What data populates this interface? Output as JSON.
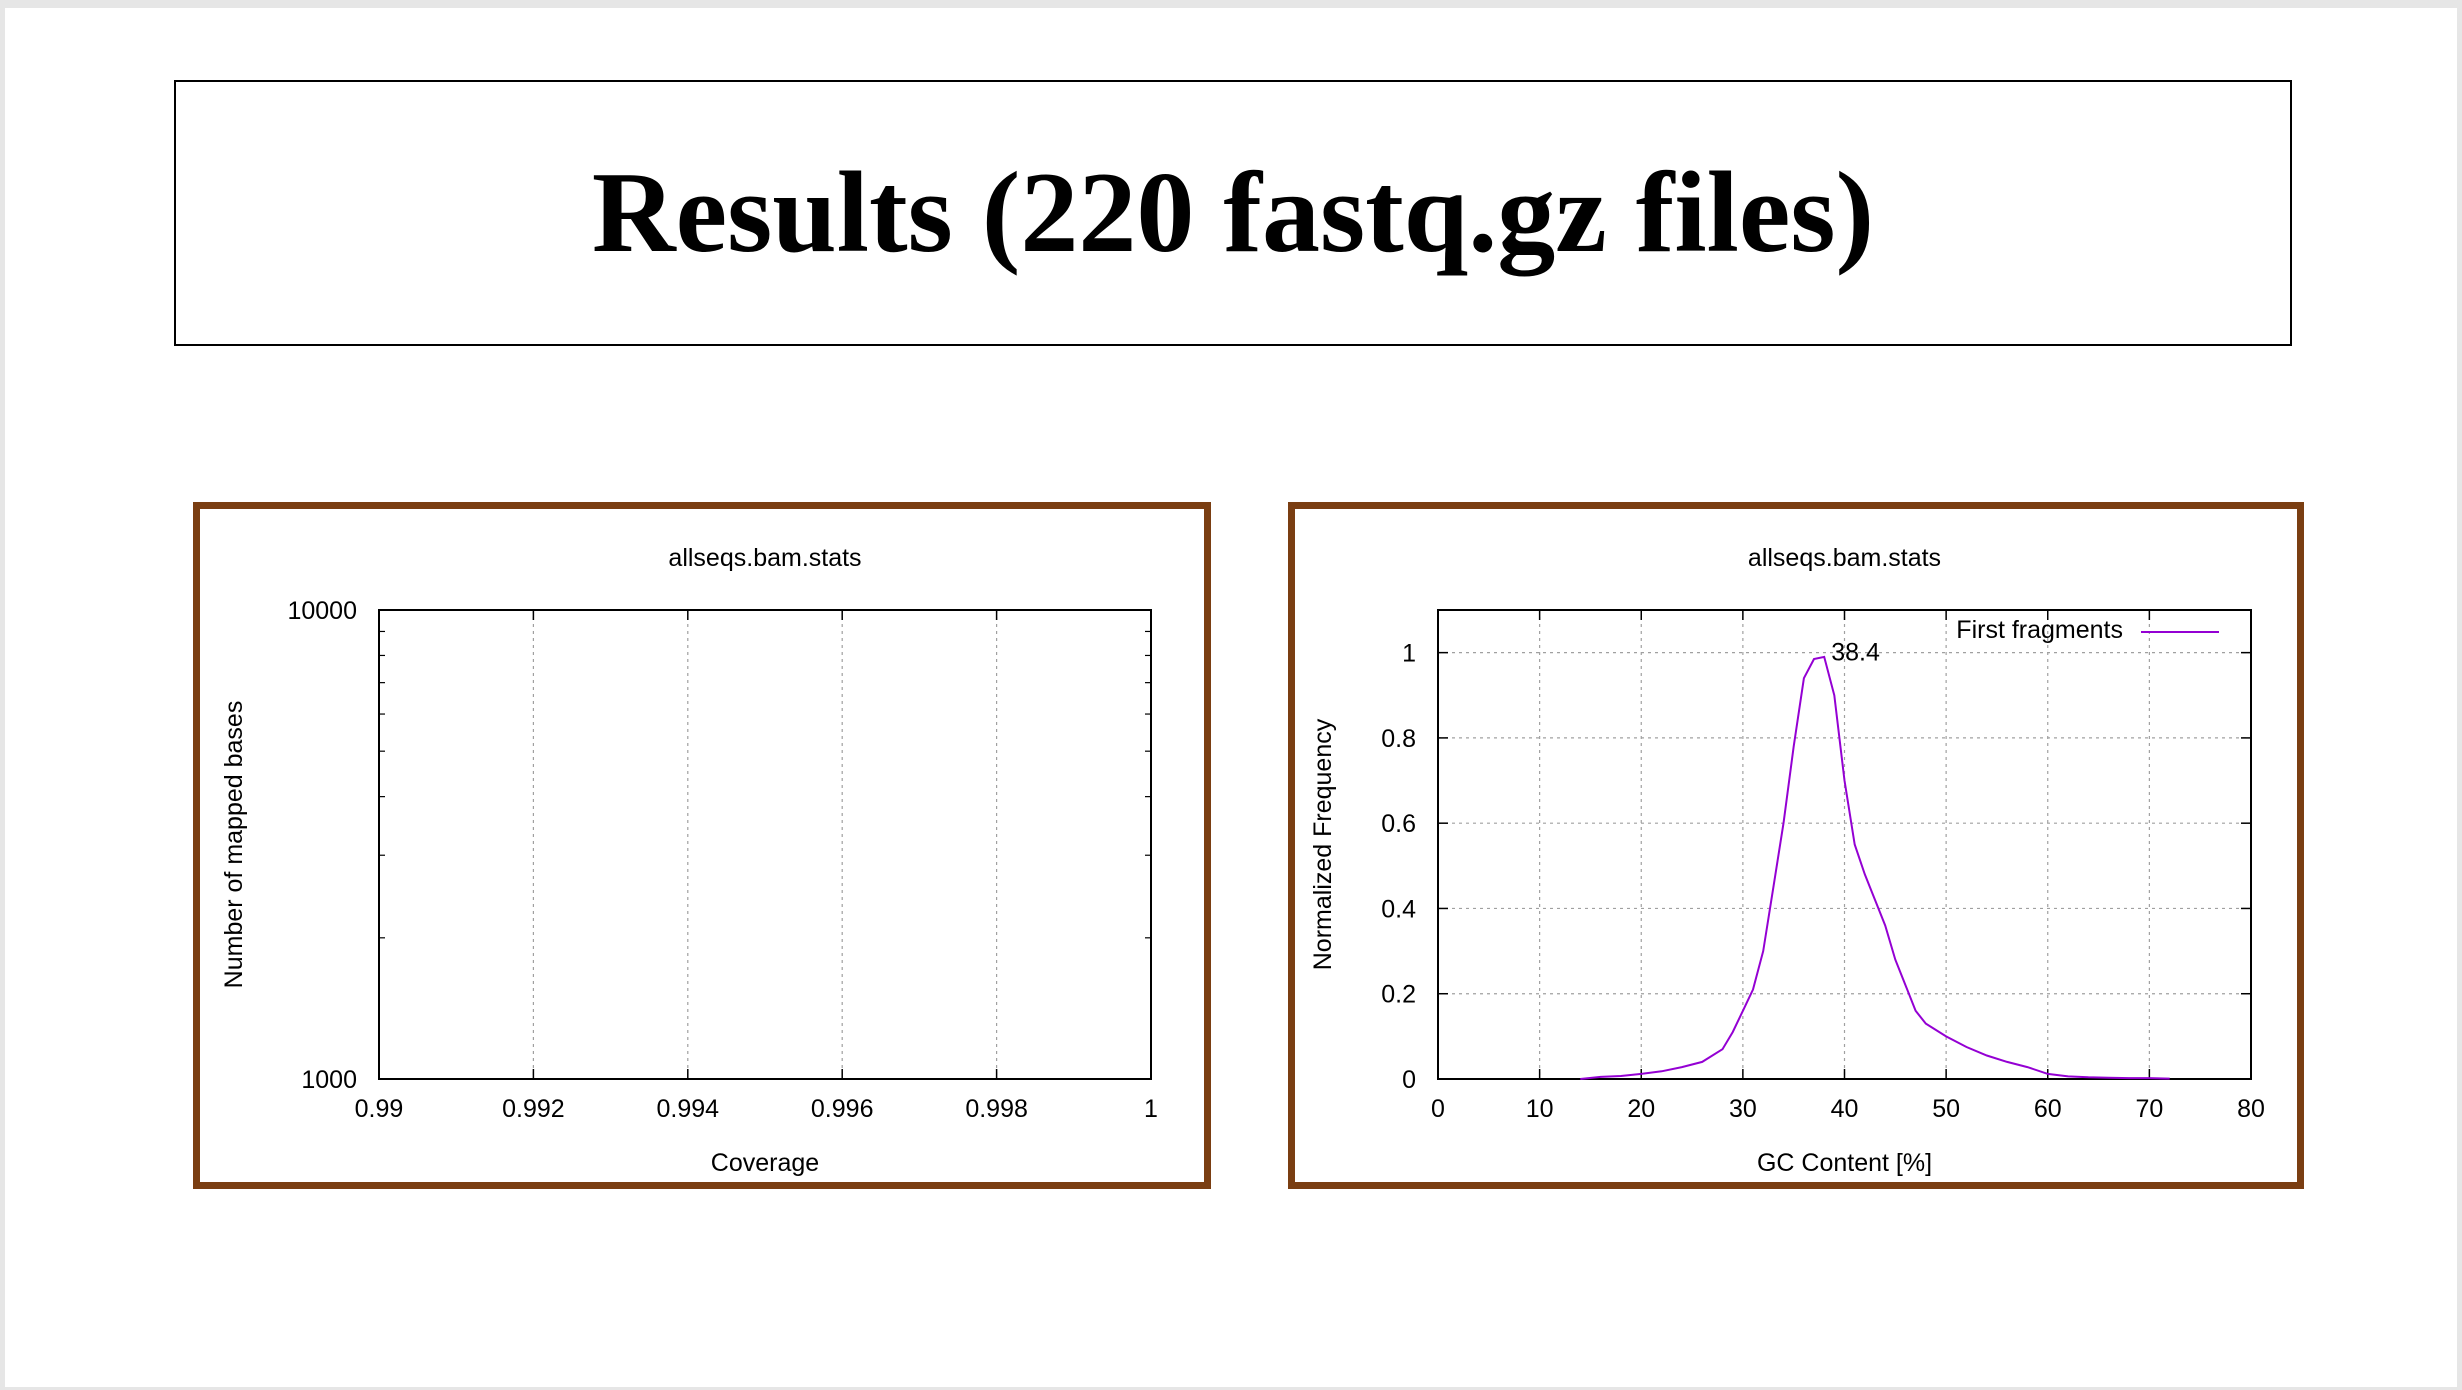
{
  "slide": {
    "title": "Results (220 fastq.gz files)"
  },
  "colors": {
    "frame_border": "#7a3e12",
    "series_line": "#9400d3",
    "grid": "#a0a0a0"
  },
  "chart_data": [
    {
      "type": "line",
      "title": "allseqs.bam.stats",
      "xlabel": "Coverage",
      "ylabel": "Number of mapped bases",
      "xlim": [
        0.99,
        1
      ],
      "ylim": [
        1000,
        10000
      ],
      "yscale": "log",
      "grid": true,
      "x_ticks": [
        0.99,
        0.992,
        0.994,
        0.996,
        0.998,
        1
      ],
      "x_tick_labels": [
        "0.99",
        "0.992",
        "0.994",
        "0.996",
        "0.998",
        "1"
      ],
      "y_ticks": [
        1000,
        10000
      ],
      "y_tick_labels": [
        "1000",
        "10000"
      ],
      "series": []
    },
    {
      "type": "line",
      "title": "allseqs.bam.stats",
      "xlabel": "GC Content [%]",
      "ylabel": "Normalized Frequency",
      "xlim": [
        0,
        80
      ],
      "ylim": [
        0,
        1.1
      ],
      "grid": true,
      "legend_position": "top-right",
      "x_ticks": [
        0,
        10,
        20,
        30,
        40,
        50,
        60,
        70,
        80
      ],
      "x_tick_labels": [
        "0",
        "10",
        "20",
        "30",
        "40",
        "50",
        "60",
        "70",
        "80"
      ],
      "y_ticks": [
        0,
        0.2,
        0.4,
        0.6,
        0.8,
        1
      ],
      "y_tick_labels": [
        "0",
        "0.2",
        "0.4",
        "0.6",
        "0.8",
        "1"
      ],
      "annotation": {
        "text": "38.4",
        "x": 38.4,
        "y": 1
      },
      "series": [
        {
          "name": "First fragments",
          "color": "#9400d3",
          "x": [
            14,
            16,
            18,
            20,
            22,
            24,
            26,
            28,
            29,
            30,
            31,
            32,
            33,
            34,
            35,
            36,
            37,
            38,
            39,
            40,
            41,
            42,
            43,
            44,
            45,
            46,
            47,
            48,
            50,
            52,
            54,
            56,
            58,
            60,
            62,
            64,
            66,
            68,
            70,
            72
          ],
          "y": [
            0.0,
            0.005,
            0.007,
            0.012,
            0.018,
            0.028,
            0.04,
            0.07,
            0.11,
            0.16,
            0.21,
            0.3,
            0.45,
            0.6,
            0.78,
            0.94,
            0.985,
            0.99,
            0.9,
            0.7,
            0.55,
            0.48,
            0.42,
            0.36,
            0.28,
            0.22,
            0.16,
            0.13,
            0.1,
            0.075,
            0.055,
            0.04,
            0.028,
            0.012,
            0.006,
            0.004,
            0.003,
            0.002,
            0.002,
            0.001
          ]
        }
      ]
    }
  ]
}
